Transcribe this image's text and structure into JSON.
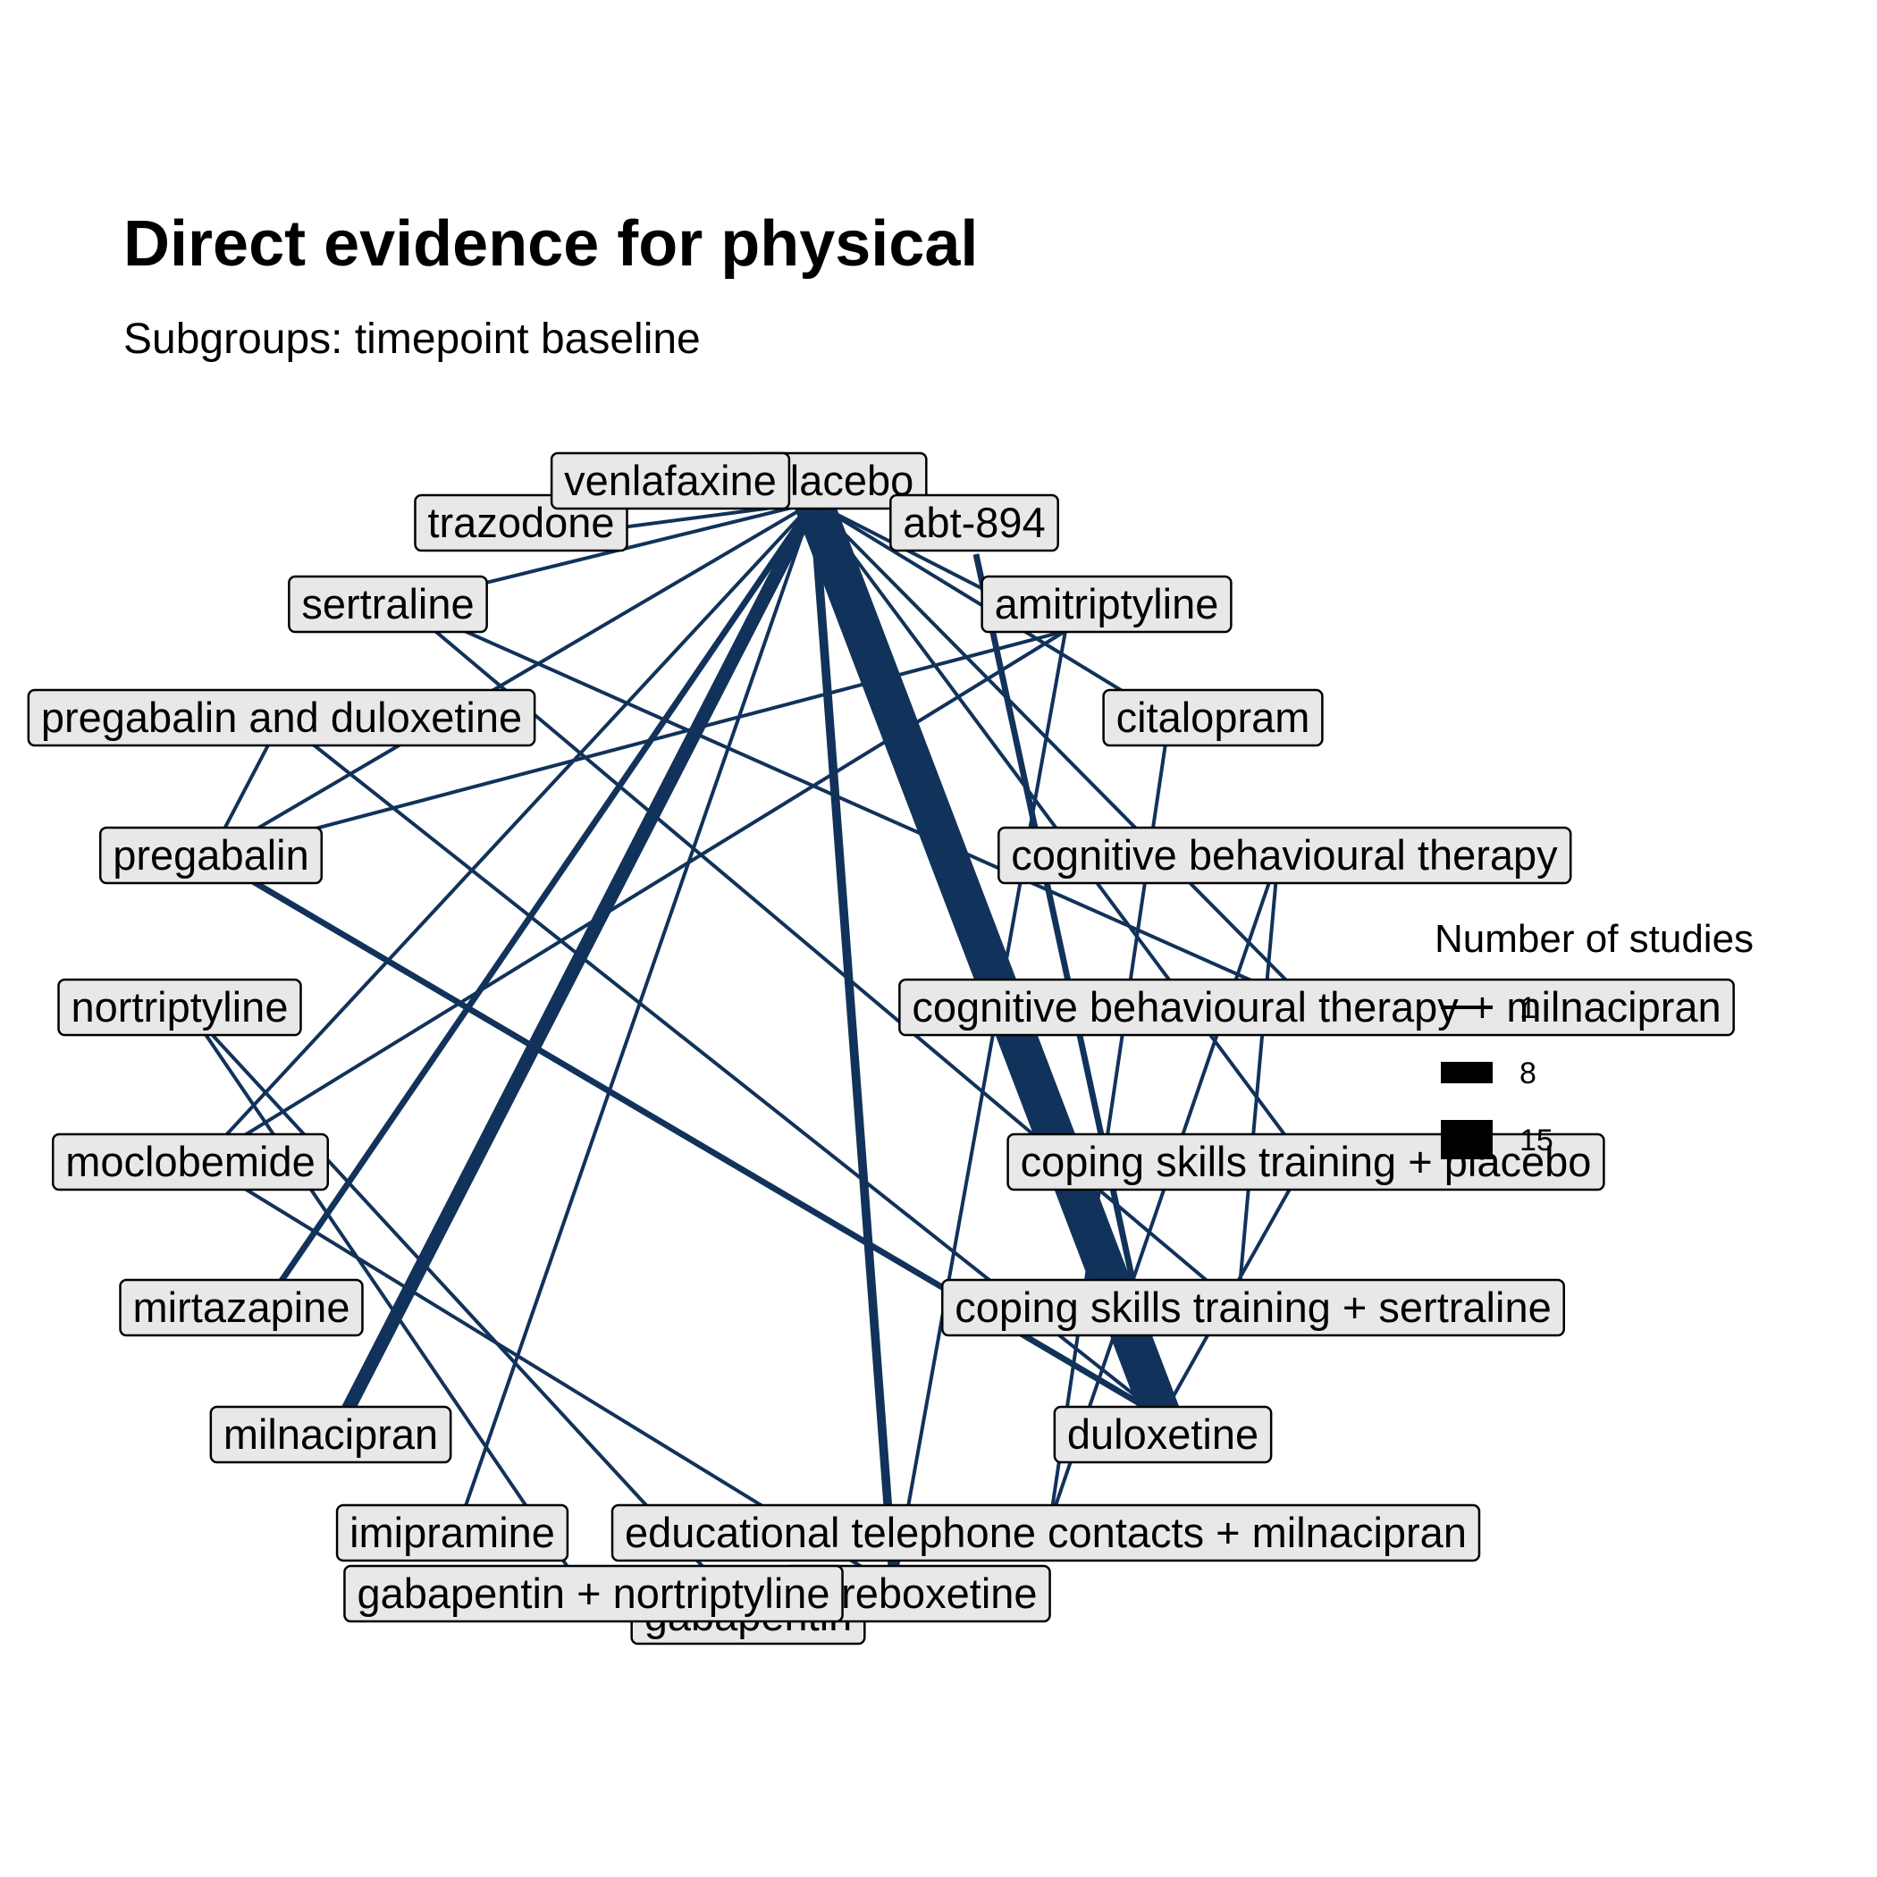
{
  "title": "Direct evidence for physical",
  "subtitle": "Subgroups: timepoint baseline",
  "edge_color": "#11325a",
  "legend": {
    "title": "Number of studies",
    "entries": [
      {
        "label": "1",
        "value": 1
      },
      {
        "label": "8",
        "value": 8
      },
      {
        "label": "15",
        "value": 15
      }
    ]
  },
  "nodes": [
    {
      "id": "placebo",
      "label": "placebo"
    },
    {
      "id": "abt",
      "label": "abt-894"
    },
    {
      "id": "amitriptyline",
      "label": "amitriptyline"
    },
    {
      "id": "citalopram",
      "label": "citalopram"
    },
    {
      "id": "cbt",
      "label": "cognitive behavioural therapy"
    },
    {
      "id": "cbt_mil",
      "label": "cognitive behavioural therapy + milnacipran"
    },
    {
      "id": "cst_placebo",
      "label": "coping skills training + placebo"
    },
    {
      "id": "cst_sert",
      "label": "coping skills training + sertraline"
    },
    {
      "id": "duloxetine",
      "label": "duloxetine"
    },
    {
      "id": "etc_mil",
      "label": "educational telephone contacts + milnacipran"
    },
    {
      "id": "esreboxetine",
      "label": "esreboxetine"
    },
    {
      "id": "gabapentin",
      "label": "gabapentin"
    },
    {
      "id": "gab_nort",
      "label": "gabapentin + nortriptyline"
    },
    {
      "id": "imipramine",
      "label": "imipramine"
    },
    {
      "id": "milnacipran",
      "label": "milnacipran"
    },
    {
      "id": "mirtazapine",
      "label": "mirtazapine"
    },
    {
      "id": "moclobemide",
      "label": "moclobemide"
    },
    {
      "id": "nortriptyline",
      "label": "nortriptyline"
    },
    {
      "id": "pregabalin",
      "label": "pregabalin"
    },
    {
      "id": "preg_dul",
      "label": "pregabalin and duloxetine"
    },
    {
      "id": "sertraline",
      "label": "sertraline"
    },
    {
      "id": "trazodone",
      "label": "trazodone"
    },
    {
      "id": "venlafaxine",
      "label": "venlafaxine"
    }
  ],
  "edges": [
    {
      "from": "placebo",
      "to": "duloxetine",
      "studies": 15
    },
    {
      "from": "placebo",
      "to": "milnacipran",
      "studies": 5
    },
    {
      "from": "placebo",
      "to": "esreboxetine",
      "studies": 3
    },
    {
      "from": "placebo",
      "to": "mirtazapine",
      "studies": 2
    },
    {
      "from": "placebo",
      "to": "imipramine",
      "studies": 1
    },
    {
      "from": "placebo",
      "to": "trazodone",
      "studies": 1
    },
    {
      "from": "placebo",
      "to": "venlafaxine",
      "studies": 1
    },
    {
      "from": "placebo",
      "to": "sertraline",
      "studies": 1
    },
    {
      "from": "placebo",
      "to": "pregabalin",
      "studies": 1
    },
    {
      "from": "placebo",
      "to": "moclobemide",
      "studies": 1
    },
    {
      "from": "placebo",
      "to": "amitriptyline",
      "studies": 1
    },
    {
      "from": "placebo",
      "to": "citalopram",
      "studies": 1
    },
    {
      "from": "placebo",
      "to": "cst_placebo",
      "studies": 1
    },
    {
      "from": "placebo",
      "to": "cbt_mil",
      "studies": 1
    },
    {
      "from": "abt",
      "to": "duloxetine",
      "studies": 2
    },
    {
      "from": "amitriptyline",
      "to": "pregabalin",
      "studies": 1
    },
    {
      "from": "amitriptyline",
      "to": "moclobemide",
      "studies": 1
    },
    {
      "from": "amitriptyline",
      "to": "esreboxetine",
      "studies": 1
    },
    {
      "from": "citalopram",
      "to": "etc_mil",
      "studies": 1
    },
    {
      "from": "cbt",
      "to": "cst_sert",
      "studies": 1
    },
    {
      "from": "cbt",
      "to": "etc_mil",
      "studies": 1
    },
    {
      "from": "sertraline",
      "to": "cbt_mil",
      "studies": 1
    },
    {
      "from": "sertraline",
      "to": "cst_sert",
      "studies": 1
    },
    {
      "from": "preg_dul",
      "to": "pregabalin",
      "studies": 1
    },
    {
      "from": "preg_dul",
      "to": "duloxetine",
      "studies": 1
    },
    {
      "from": "pregabalin",
      "to": "duloxetine",
      "studies": 2
    },
    {
      "from": "nortriptyline",
      "to": "gabapentin",
      "studies": 1
    },
    {
      "from": "nortriptyline",
      "to": "gab_nort",
      "studies": 1
    },
    {
      "from": "moclobemide",
      "to": "esreboxetine",
      "studies": 1
    },
    {
      "from": "cst_placebo",
      "to": "duloxetine",
      "studies": 1
    }
  ]
}
